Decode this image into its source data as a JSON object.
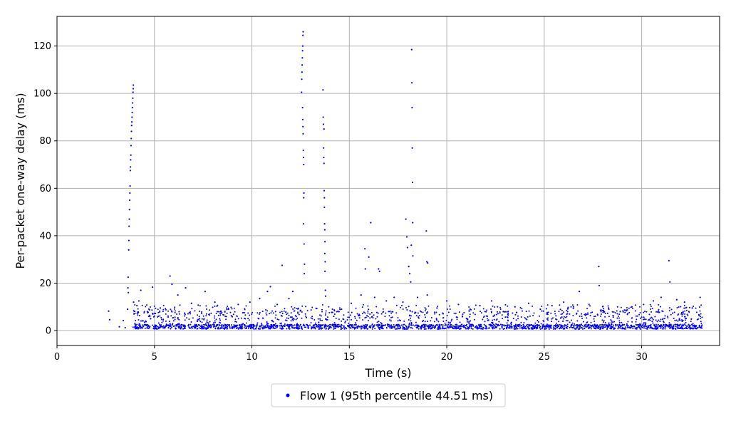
{
  "chart_data": {
    "type": "scatter",
    "title": "",
    "xlabel": "Time (s)",
    "ylabel": "Per-packet one-way delay (ms)",
    "xlim": [
      0,
      34
    ],
    "ylim": [
      -6.3,
      132.5
    ],
    "xticks": [
      0,
      5,
      10,
      15,
      20,
      25,
      30
    ],
    "yticks": [
      0,
      20,
      40,
      60,
      80,
      100,
      120
    ],
    "grid": true,
    "legend_position": "bottom-center",
    "series": [
      {
        "name": "Flow 1 (95th percentile 44.51 ms)",
        "color": "#0000ff",
        "points": [
          [
            2.65,
            8.2
          ],
          [
            2.7,
            4.6
          ],
          [
            3.2,
            1.6
          ],
          [
            3.4,
            4.2
          ],
          [
            3.5,
            1.2
          ],
          [
            3.62,
            9.0
          ],
          [
            3.64,
            18.0
          ],
          [
            3.65,
            22.5
          ],
          [
            3.66,
            16.0
          ],
          [
            3.68,
            34.0
          ],
          [
            3.69,
            38.0
          ],
          [
            3.7,
            44.0
          ],
          [
            3.71,
            47.0
          ],
          [
            3.72,
            51.0
          ],
          [
            3.73,
            55.0
          ],
          [
            3.74,
            58.0
          ],
          [
            3.75,
            61.0
          ],
          [
            3.76,
            67.5
          ],
          [
            3.77,
            69.0
          ],
          [
            3.78,
            72.0
          ],
          [
            3.79,
            74.0
          ],
          [
            3.8,
            78.0
          ],
          [
            3.81,
            81.0
          ],
          [
            3.82,
            84.0
          ],
          [
            3.83,
            86.5
          ],
          [
            3.84,
            88.0
          ],
          [
            3.85,
            90.0
          ],
          [
            3.86,
            92.0
          ],
          [
            3.87,
            94.0
          ],
          [
            3.88,
            96.0
          ],
          [
            3.89,
            98.0
          ],
          [
            3.9,
            100.5
          ],
          [
            3.91,
            102.0
          ],
          [
            3.92,
            103.5
          ],
          [
            3.93,
            12.0
          ],
          [
            3.95,
            7.0
          ],
          [
            4.0,
            3.0
          ],
          [
            4.1,
            10.5
          ],
          [
            4.2,
            12.5
          ],
          [
            4.3,
            17.0
          ],
          [
            4.5,
            3.5
          ],
          [
            4.8,
            5.0
          ],
          [
            4.9,
            18.3
          ],
          [
            5.3,
            9.5
          ],
          [
            5.8,
            23.0
          ],
          [
            5.9,
            19.5
          ],
          [
            6.2,
            15.0
          ],
          [
            6.6,
            18.0
          ],
          [
            6.9,
            11.5
          ],
          [
            7.6,
            16.5
          ],
          [
            8.1,
            12.0
          ],
          [
            8.8,
            9.0
          ],
          [
            9.3,
            11.0
          ],
          [
            9.9,
            12.0
          ],
          [
            10.4,
            13.5
          ],
          [
            10.8,
            16.5
          ],
          [
            10.95,
            18.5
          ],
          [
            11.3,
            11.0
          ],
          [
            11.55,
            27.5
          ],
          [
            11.9,
            13.5
          ],
          [
            12.1,
            16.5
          ],
          [
            12.5,
            8.5
          ],
          [
            12.55,
            100.5
          ],
          [
            12.56,
            106.0
          ],
          [
            12.57,
            109.0
          ],
          [
            12.58,
            112.0
          ],
          [
            12.59,
            115.0
          ],
          [
            12.6,
            118.0
          ],
          [
            12.61,
            120.0
          ],
          [
            12.62,
            124.5
          ],
          [
            12.63,
            126.0
          ],
          [
            12.6,
            94.0
          ],
          [
            12.61,
            89.0
          ],
          [
            12.62,
            86.0
          ],
          [
            12.63,
            83.0
          ],
          [
            12.64,
            76.0
          ],
          [
            12.65,
            73.0
          ],
          [
            12.66,
            70.0
          ],
          [
            12.67,
            58.0
          ],
          [
            12.66,
            56.0
          ],
          [
            12.65,
            45.0
          ],
          [
            12.68,
            36.5
          ],
          [
            12.7,
            28.0
          ],
          [
            12.69,
            24.0
          ],
          [
            12.8,
            5.5
          ],
          [
            13.65,
            101.5
          ],
          [
            13.66,
            90.0
          ],
          [
            13.67,
            87.0
          ],
          [
            13.7,
            85.0
          ],
          [
            13.68,
            77.0
          ],
          [
            13.69,
            73.0
          ],
          [
            13.7,
            70.5
          ],
          [
            13.71,
            59.0
          ],
          [
            13.72,
            56.0
          ],
          [
            13.72,
            52.0
          ],
          [
            13.73,
            45.0
          ],
          [
            13.74,
            42.5
          ],
          [
            13.75,
            37.5
          ],
          [
            13.74,
            32.5
          ],
          [
            13.76,
            29.0
          ],
          [
            13.75,
            25.0
          ],
          [
            13.77,
            17.0
          ],
          [
            13.78,
            14.5
          ],
          [
            14.2,
            6.0
          ],
          [
            14.6,
            9.0
          ],
          [
            15.1,
            11.5
          ],
          [
            15.6,
            15.0
          ],
          [
            15.8,
            34.5
          ],
          [
            15.82,
            26.0
          ],
          [
            16.0,
            31.0
          ],
          [
            16.1,
            45.5
          ],
          [
            16.3,
            14.0
          ],
          [
            16.5,
            26.0
          ],
          [
            16.55,
            25.0
          ],
          [
            16.9,
            12.5
          ],
          [
            17.3,
            14.0
          ],
          [
            17.75,
            12.0
          ],
          [
            17.9,
            47.0
          ],
          [
            17.95,
            39.5
          ],
          [
            17.98,
            35.0
          ],
          [
            18.05,
            27.0
          ],
          [
            18.1,
            24.0
          ],
          [
            18.15,
            20.5
          ],
          [
            18.18,
            36.0
          ],
          [
            18.2,
            118.5
          ],
          [
            18.21,
            104.5
          ],
          [
            18.22,
            94.0
          ],
          [
            18.23,
            77.0
          ],
          [
            18.24,
            62.5
          ],
          [
            18.25,
            45.5
          ],
          [
            18.26,
            31.5
          ],
          [
            18.5,
            14.0
          ],
          [
            18.95,
            42.0
          ],
          [
            18.98,
            29.0
          ],
          [
            19.02,
            28.5
          ],
          [
            19.0,
            15.0
          ],
          [
            19.5,
            9.5
          ],
          [
            20.0,
            12.5
          ],
          [
            20.6,
            11.0
          ],
          [
            21.2,
            9.0
          ],
          [
            21.7,
            10.5
          ],
          [
            22.3,
            12.5
          ],
          [
            22.9,
            8.0
          ],
          [
            23.5,
            10.0
          ],
          [
            24.2,
            11.5
          ],
          [
            24.8,
            9.0
          ],
          [
            25.4,
            10.5
          ],
          [
            26.0,
            12.0
          ],
          [
            26.5,
            10.0
          ],
          [
            26.8,
            16.5
          ],
          [
            27.3,
            11.0
          ],
          [
            27.8,
            27.0
          ],
          [
            27.82,
            19.0
          ],
          [
            28.3,
            9.5
          ],
          [
            28.9,
            8.0
          ],
          [
            29.5,
            10.0
          ],
          [
            30.1,
            11.0
          ],
          [
            30.6,
            12.5
          ],
          [
            31.0,
            14.0
          ],
          [
            31.4,
            29.5
          ],
          [
            31.45,
            20.5
          ],
          [
            31.8,
            13.0
          ],
          [
            32.2,
            12.0
          ],
          [
            32.6,
            9.5
          ],
          [
            33.0,
            14.0
          ]
        ],
        "baseline_cluster": {
          "x_range": [
            3.9,
            33.1
          ],
          "y_min": 0.6,
          "y_typical": 1.8,
          "y_scatter_max": 11.0
        }
      }
    ]
  },
  "legend": {
    "label": "Flow 1 (95th percentile 44.51 ms)"
  }
}
